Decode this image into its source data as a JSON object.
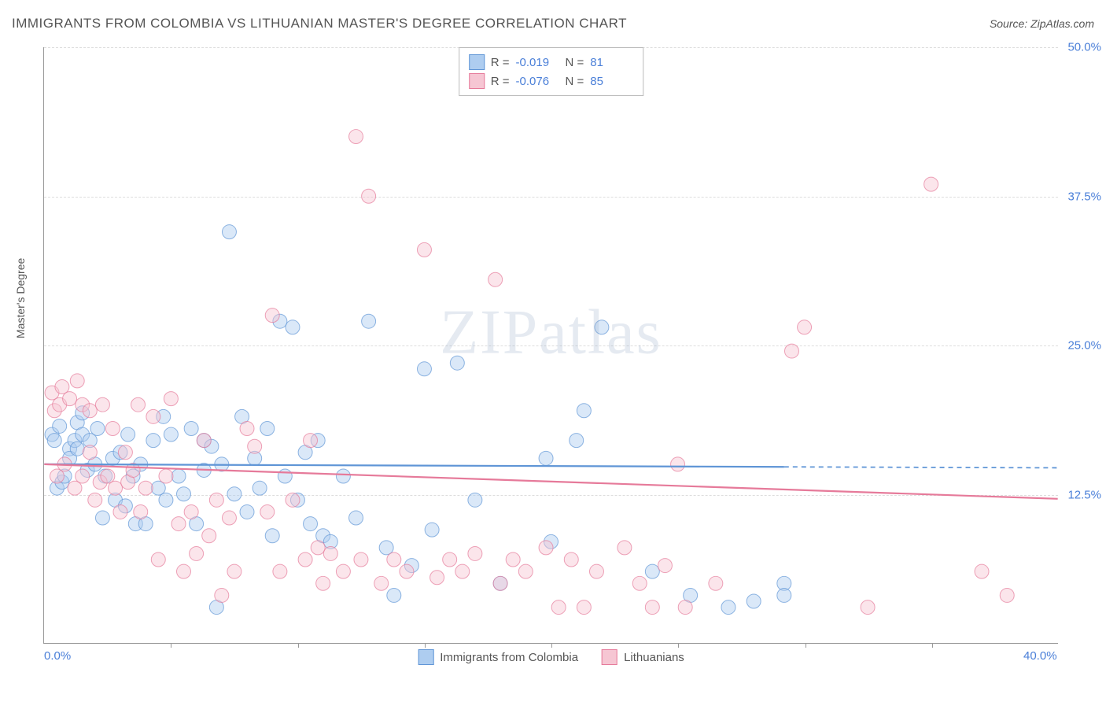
{
  "title": "IMMIGRANTS FROM COLOMBIA VS LITHUANIAN MASTER'S DEGREE CORRELATION CHART",
  "source": "Source: ZipAtlas.com",
  "ylabel": "Master's Degree",
  "watermark": "ZIPatlas",
  "chart": {
    "type": "scatter",
    "xlim": [
      0,
      40
    ],
    "ylim": [
      0,
      50
    ],
    "xticks": [
      0,
      40
    ],
    "xtick_labels": [
      "0.0%",
      "40.0%"
    ],
    "yticks": [
      12.5,
      25.0,
      37.5,
      50.0
    ],
    "ytick_labels": [
      "12.5%",
      "25.0%",
      "37.5%",
      "50.0%"
    ],
    "xtick_marks": [
      5,
      10,
      15,
      20,
      25,
      30,
      35
    ],
    "grid_color": "#dddddd",
    "axis_color": "#999999",
    "background_color": "#ffffff",
    "marker_radius": 9,
    "marker_opacity": 0.45,
    "line_width": 2.2,
    "series": [
      {
        "name": "Immigrants from Colombia",
        "color_fill": "#aecdf0",
        "color_stroke": "#5f95d6",
        "r_label": "R =",
        "r": "-0.019",
        "n_label": "N =",
        "n": "81",
        "trend": {
          "y_at_xmin": 15.0,
          "y_at_xmax": 14.7,
          "solid_until_x": 29.2
        },
        "points": [
          [
            0.3,
            17.5
          ],
          [
            0.4,
            17.0
          ],
          [
            0.5,
            13.0
          ],
          [
            0.6,
            18.2
          ],
          [
            0.7,
            13.5
          ],
          [
            0.8,
            14.0
          ],
          [
            1.0,
            16.3
          ],
          [
            1.0,
            15.5
          ],
          [
            1.2,
            17.0
          ],
          [
            1.3,
            18.5
          ],
          [
            1.3,
            16.3
          ],
          [
            1.5,
            17.5
          ],
          [
            1.5,
            19.3
          ],
          [
            1.7,
            14.5
          ],
          [
            1.8,
            17.0
          ],
          [
            2.0,
            15.0
          ],
          [
            2.1,
            18.0
          ],
          [
            2.3,
            10.5
          ],
          [
            2.4,
            14.0
          ],
          [
            2.7,
            15.5
          ],
          [
            2.8,
            12.0
          ],
          [
            3.0,
            16.0
          ],
          [
            3.2,
            11.5
          ],
          [
            3.3,
            17.5
          ],
          [
            3.5,
            14.0
          ],
          [
            3.6,
            10.0
          ],
          [
            3.8,
            15.0
          ],
          [
            4.0,
            10.0
          ],
          [
            4.3,
            17.0
          ],
          [
            4.5,
            13.0
          ],
          [
            4.7,
            19.0
          ],
          [
            4.8,
            12.0
          ],
          [
            5.0,
            17.5
          ],
          [
            5.3,
            14.0
          ],
          [
            5.5,
            12.5
          ],
          [
            5.8,
            18.0
          ],
          [
            6.0,
            10.0
          ],
          [
            6.3,
            14.5
          ],
          [
            6.3,
            17.0
          ],
          [
            6.6,
            16.5
          ],
          [
            6.8,
            3.0
          ],
          [
            7.0,
            15.0
          ],
          [
            7.3,
            34.5
          ],
          [
            7.5,
            12.5
          ],
          [
            7.8,
            19.0
          ],
          [
            8.0,
            11.0
          ],
          [
            8.3,
            15.5
          ],
          [
            8.5,
            13.0
          ],
          [
            8.8,
            18.0
          ],
          [
            9.0,
            9.0
          ],
          [
            9.3,
            27.0
          ],
          [
            9.5,
            14.0
          ],
          [
            9.8,
            26.5
          ],
          [
            10.0,
            12.0
          ],
          [
            10.3,
            16.0
          ],
          [
            10.5,
            10.0
          ],
          [
            10.8,
            17.0
          ],
          [
            11.0,
            9.0
          ],
          [
            11.3,
            8.5
          ],
          [
            11.8,
            14.0
          ],
          [
            12.3,
            10.5
          ],
          [
            12.8,
            27.0
          ],
          [
            13.5,
            8.0
          ],
          [
            13.8,
            4.0
          ],
          [
            14.5,
            6.5
          ],
          [
            15.0,
            23.0
          ],
          [
            15.3,
            9.5
          ],
          [
            16.3,
            23.5
          ],
          [
            17.0,
            12.0
          ],
          [
            18.0,
            5.0
          ],
          [
            19.8,
            15.5
          ],
          [
            20.0,
            8.5
          ],
          [
            21.0,
            17.0
          ],
          [
            21.3,
            19.5
          ],
          [
            22.0,
            26.5
          ],
          [
            24.0,
            6.0
          ],
          [
            25.5,
            4.0
          ],
          [
            27.0,
            3.0
          ],
          [
            28.0,
            3.5
          ],
          [
            29.2,
            5.0
          ],
          [
            29.2,
            4.0
          ]
        ]
      },
      {
        "name": "Lithuanians",
        "color_fill": "#f6c6d3",
        "color_stroke": "#e67a9a",
        "r_label": "R =",
        "r": "-0.076",
        "n_label": "N =",
        "n": "85",
        "trend": {
          "y_at_xmin": 15.0,
          "y_at_xmax": 12.1,
          "solid_until_x": 40
        },
        "points": [
          [
            0.3,
            21.0
          ],
          [
            0.4,
            19.5
          ],
          [
            0.5,
            14.0
          ],
          [
            0.6,
            20.0
          ],
          [
            0.7,
            21.5
          ],
          [
            0.8,
            15.0
          ],
          [
            1.0,
            20.5
          ],
          [
            1.2,
            13.0
          ],
          [
            1.3,
            22.0
          ],
          [
            1.5,
            20.0
          ],
          [
            1.5,
            14.0
          ],
          [
            1.8,
            19.5
          ],
          [
            1.8,
            16.0
          ],
          [
            2.0,
            12.0
          ],
          [
            2.2,
            13.5
          ],
          [
            2.3,
            20.0
          ],
          [
            2.5,
            14.0
          ],
          [
            2.7,
            18.0
          ],
          [
            2.8,
            13.0
          ],
          [
            3.0,
            11.0
          ],
          [
            3.2,
            16.0
          ],
          [
            3.3,
            13.5
          ],
          [
            3.5,
            14.5
          ],
          [
            3.7,
            20.0
          ],
          [
            3.8,
            11.0
          ],
          [
            4.0,
            13.0
          ],
          [
            4.3,
            19.0
          ],
          [
            4.5,
            7.0
          ],
          [
            4.8,
            14.0
          ],
          [
            5.0,
            20.5
          ],
          [
            5.3,
            10.0
          ],
          [
            5.5,
            6.0
          ],
          [
            5.8,
            11.0
          ],
          [
            6.0,
            7.5
          ],
          [
            6.3,
            17.0
          ],
          [
            6.5,
            9.0
          ],
          [
            6.8,
            12.0
          ],
          [
            7.0,
            4.0
          ],
          [
            7.3,
            10.5
          ],
          [
            7.5,
            6.0
          ],
          [
            8.0,
            18.0
          ],
          [
            8.3,
            16.5
          ],
          [
            8.8,
            11.0
          ],
          [
            9.0,
            27.5
          ],
          [
            9.3,
            6.0
          ],
          [
            9.8,
            12.0
          ],
          [
            10.3,
            7.0
          ],
          [
            10.5,
            17.0
          ],
          [
            10.8,
            8.0
          ],
          [
            11.0,
            5.0
          ],
          [
            11.3,
            7.5
          ],
          [
            11.8,
            6.0
          ],
          [
            12.3,
            42.5
          ],
          [
            12.5,
            7.0
          ],
          [
            12.8,
            37.5
          ],
          [
            13.3,
            5.0
          ],
          [
            13.8,
            7.0
          ],
          [
            14.3,
            6.0
          ],
          [
            15.0,
            33.0
          ],
          [
            15.5,
            5.5
          ],
          [
            16.0,
            7.0
          ],
          [
            16.5,
            6.0
          ],
          [
            17.0,
            7.5
          ],
          [
            17.8,
            30.5
          ],
          [
            18.0,
            5.0
          ],
          [
            18.5,
            7.0
          ],
          [
            19.0,
            6.0
          ],
          [
            19.8,
            8.0
          ],
          [
            20.3,
            3.0
          ],
          [
            20.8,
            7.0
          ],
          [
            21.3,
            3.0
          ],
          [
            21.8,
            6.0
          ],
          [
            22.9,
            8.0
          ],
          [
            23.5,
            5.0
          ],
          [
            24.0,
            3.0
          ],
          [
            24.5,
            6.5
          ],
          [
            25.0,
            15.0
          ],
          [
            25.3,
            3.0
          ],
          [
            26.5,
            5.0
          ],
          [
            29.5,
            24.5
          ],
          [
            30.0,
            26.5
          ],
          [
            32.5,
            3.0
          ],
          [
            35.0,
            38.5
          ],
          [
            37.0,
            6.0
          ],
          [
            38.0,
            4.0
          ]
        ]
      }
    ]
  },
  "legend_bottom": [
    {
      "label": "Immigrants from Colombia"
    },
    {
      "label": "Lithuanians"
    }
  ]
}
